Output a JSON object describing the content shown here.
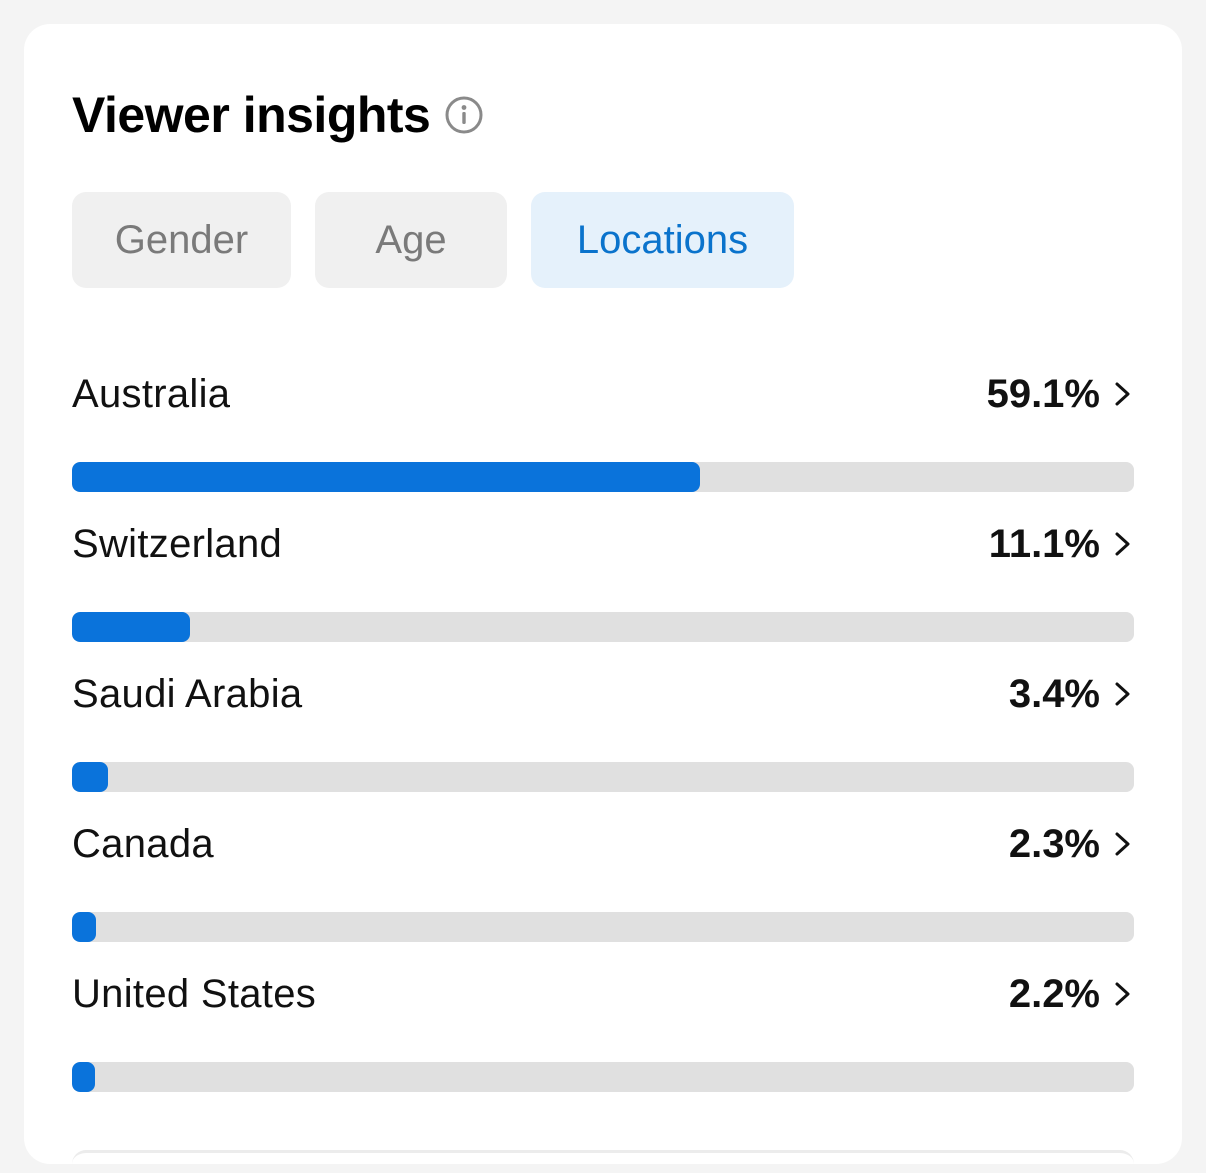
{
  "header": {
    "title": "Viewer insights",
    "info_icon": "info-circle-icon"
  },
  "tabs": [
    {
      "label": "Gender",
      "active": false
    },
    {
      "label": "Age",
      "active": false
    },
    {
      "label": "Locations",
      "active": true
    }
  ],
  "locations": [
    {
      "country": "Australia",
      "percent_label": "59.1%",
      "percent": 59.1
    },
    {
      "country": "Switzerland",
      "percent_label": "11.1%",
      "percent": 11.1
    },
    {
      "country": "Saudi Arabia",
      "percent_label": "3.4%",
      "percent": 3.4
    },
    {
      "country": "Canada",
      "percent_label": "2.3%",
      "percent": 2.3
    },
    {
      "country": "United States",
      "percent_label": "2.2%",
      "percent": 2.2
    }
  ],
  "colors": {
    "accent": "#0a73db",
    "active_tab_bg": "#e5f1fb",
    "active_tab_text": "#0a73cc",
    "track": "#e0e0e0"
  }
}
